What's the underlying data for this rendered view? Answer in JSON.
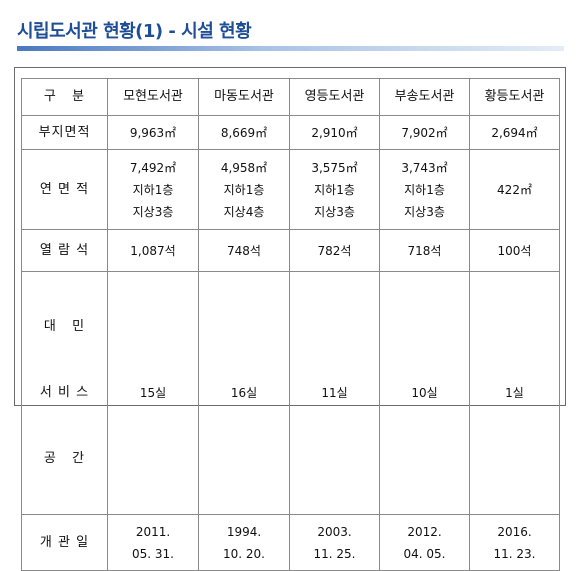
{
  "title": "시립도서관 현황(1) - 시설 현황",
  "table": {
    "corner": "구   분",
    "libraries": [
      "모현도서관",
      "마동도서관",
      "영등도서관",
      "부송도서관",
      "황등도서관"
    ],
    "rows": [
      {
        "label_lines": [
          "부지면적"
        ],
        "cells": [
          [
            "9,963㎡"
          ],
          [
            "8,669㎡"
          ],
          [
            "2,910㎡"
          ],
          [
            "7,902㎡"
          ],
          [
            "2,694㎡"
          ]
        ]
      },
      {
        "label_lines": [
          "연 면 적"
        ],
        "cells": [
          [
            "7,492㎡",
            "지하1층",
            "지상3층"
          ],
          [
            "4,958㎡",
            "지하1층",
            "지상4층"
          ],
          [
            "3,575㎡",
            "지하1층",
            "지상3층"
          ],
          [
            "3,743㎡",
            "지하1층",
            "지상3층"
          ],
          [
            "422㎡"
          ]
        ]
      },
      {
        "label_lines": [
          "열 람 석"
        ],
        "cells": [
          [
            "1,087석"
          ],
          [
            "748석"
          ],
          [
            "782석"
          ],
          [
            "718석"
          ],
          [
            "100석"
          ]
        ]
      },
      {
        "label_lines": [
          "대   민",
          "서 비 스",
          "공   간"
        ],
        "cells": [
          [
            "15실"
          ],
          [
            "16실"
          ],
          [
            "11실"
          ],
          [
            "10실"
          ],
          [
            "1실"
          ]
        ]
      },
      {
        "label_lines": [
          "개 관 일"
        ],
        "cells": [
          [
            "2011.",
            "05. 31."
          ],
          [
            "1994.",
            "10. 20."
          ],
          [
            "2003.",
            "11. 25."
          ],
          [
            "2012.",
            "04. 05."
          ],
          [
            "2016.",
            "11. 23."
          ]
        ]
      }
    ]
  }
}
